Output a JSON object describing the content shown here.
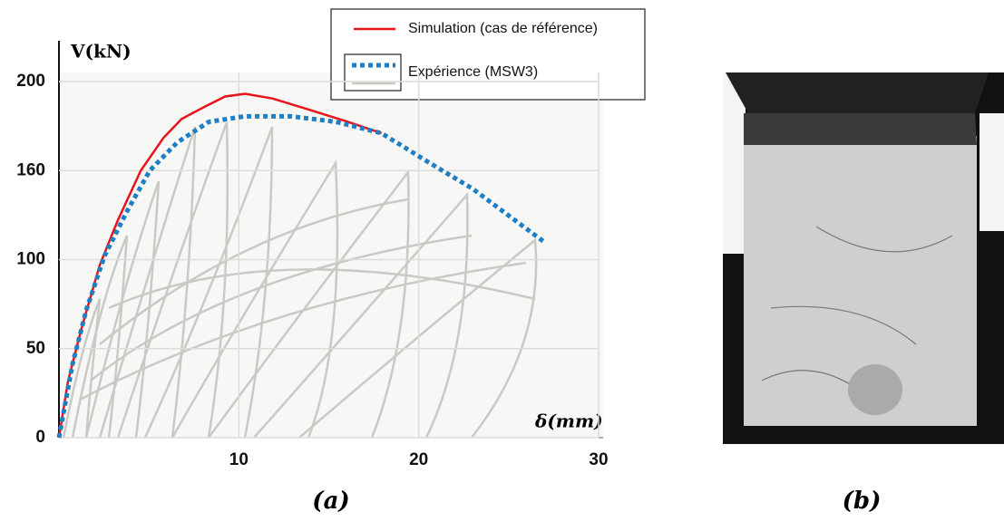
{
  "chart_data": {
    "type": "line",
    "y_label": "V(kN)",
    "x_label": "δ(mm)",
    "xlim": [
      0,
      30
    ],
    "xticks": [
      10,
      20,
      30
    ],
    "ylim": [
      0,
      200
    ],
    "yticks": [
      0,
      50,
      100,
      160,
      200
    ],
    "grid": true,
    "legend": "top",
    "series": [
      {
        "name": "Simulation (cas de référence)",
        "color": "#e8141c",
        "style": "solid",
        "x": [
          0,
          0.5,
          1.26,
          2.27,
          3.28,
          4.55,
          5.81,
          6.82,
          8.08,
          9.24,
          10.35,
          11.87,
          13.89,
          15.91,
          17.93
        ],
        "values": [
          0,
          31.5,
          61.6,
          97,
          126.7,
          160,
          174.7,
          183.2,
          188.6,
          193.3,
          194.5,
          192.4,
          187.4,
          182.3,
          176.8
        ]
      },
      {
        "name": "Expérience (MSW3)",
        "color": "#1f7fc4",
        "style": "dotted",
        "x": [
          0,
          0.76,
          1.52,
          2.53,
          3.79,
          5.05,
          6.57,
          8.33,
          10.35,
          12.88,
          15.4,
          17.93,
          20.45,
          22.98,
          25,
          27.02
        ],
        "values": [
          0,
          41.5,
          71.7,
          102.4,
          132.7,
          160,
          172.6,
          181.9,
          184.4,
          184.4,
          181.9,
          176.8,
          164.2,
          147.9,
          129.7,
          111.5
        ]
      }
    ]
  },
  "captions": [
    "(a)",
    "(b)"
  ]
}
